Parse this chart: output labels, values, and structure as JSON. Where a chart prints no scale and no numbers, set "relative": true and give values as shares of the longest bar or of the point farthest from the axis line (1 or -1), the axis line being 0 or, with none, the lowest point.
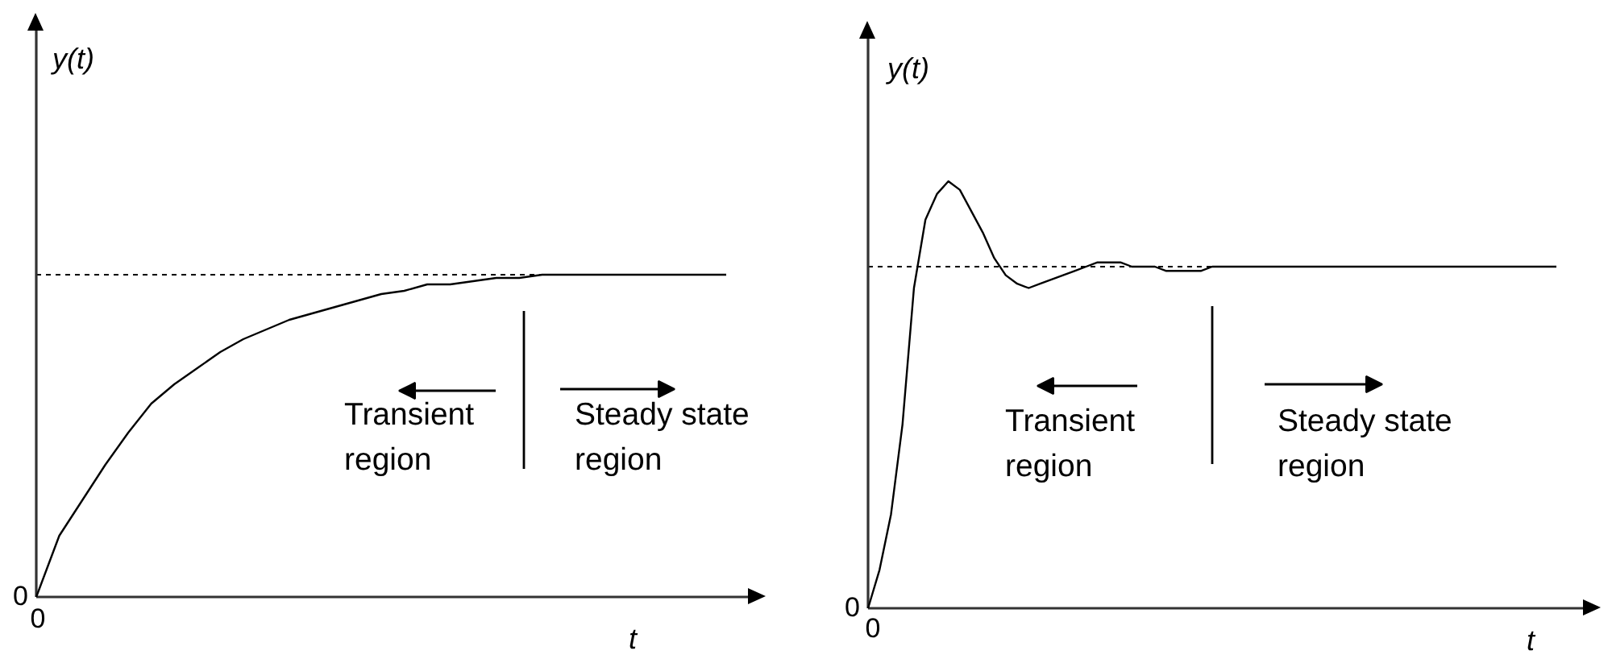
{
  "chart_data": [
    {
      "type": "line",
      "relative": true,
      "xlabel": "t",
      "ylabel": "y(t)",
      "line_style": "solid",
      "categories": [
        null,
        null,
        null,
        null,
        null,
        null,
        null,
        null,
        null,
        null,
        null,
        null,
        null,
        null,
        null,
        null,
        null,
        null,
        null,
        null,
        null,
        null,
        null,
        null,
        null,
        null,
        null,
        null,
        null,
        null,
        null
      ],
      "series": [
        {
          "color": "#000000",
          "values": [
            0,
            0.19,
            0.3,
            0.41,
            0.51,
            0.6,
            0.66,
            0.71,
            0.76,
            0.8,
            0.83,
            0.86,
            0.88,
            0.9,
            0.92,
            0.94,
            0.95,
            0.97,
            0.97,
            0.98,
            0.99,
            0.99,
            1,
            1,
            1,
            1,
            1,
            1,
            1,
            1,
            1
          ]
        }
      ],
      "ref_lines": [
        {
          "axis": "y",
          "value": 1,
          "line_style": "dashed",
          "color": "#000000"
        }
      ],
      "annotations": [
        "0",
        "0",
        "Transient\nregion",
        "Steady state\nregion"
      ]
    },
    {
      "type": "line",
      "relative": true,
      "xlabel": "t",
      "ylabel": "y(t)",
      "line_style": "solid",
      "categories": [
        null,
        null,
        null,
        null,
        null,
        null,
        null,
        null,
        null,
        null,
        null,
        null,
        null,
        null,
        null,
        null,
        null,
        null,
        null,
        null,
        null,
        null,
        null,
        null,
        null,
        null,
        null,
        null,
        null,
        null,
        null,
        null,
        null,
        null,
        null,
        null,
        null,
        null,
        null,
        null,
        null,
        null,
        null,
        null,
        null,
        null,
        null,
        null,
        null,
        null,
        null,
        null,
        null,
        null,
        null,
        null,
        null,
        null,
        null,
        null,
        null
      ],
      "series": [
        {
          "color": "#000000",
          "values": [
            0,
            0.09,
            0.22,
            0.43,
            0.75,
            0.91,
            0.97,
            1,
            0.98,
            0.93,
            0.88,
            0.82,
            0.78,
            0.76,
            0.75,
            0.76,
            0.77,
            0.78,
            0.79,
            0.8,
            0.81,
            0.81,
            0.81,
            0.8,
            0.8,
            0.8,
            0.79,
            0.79,
            0.79,
            0.79,
            0.8,
            0.8,
            0.8,
            0.8,
            0.8,
            0.8,
            0.8,
            0.8,
            0.8,
            0.8,
            0.8,
            0.8,
            0.8,
            0.8,
            0.8,
            0.8,
            0.8,
            0.8,
            0.8,
            0.8,
            0.8,
            0.8,
            0.8,
            0.8,
            0.8,
            0.8,
            0.8,
            0.8,
            0.8,
            0.8,
            0.8
          ]
        }
      ],
      "ref_lines": [
        {
          "axis": "y",
          "value": 0.8,
          "line_style": "dashed",
          "color": "#000000"
        }
      ],
      "annotations": [
        "0",
        "0",
        "Transient\nregion",
        "Steady state\nregion"
      ]
    }
  ]
}
